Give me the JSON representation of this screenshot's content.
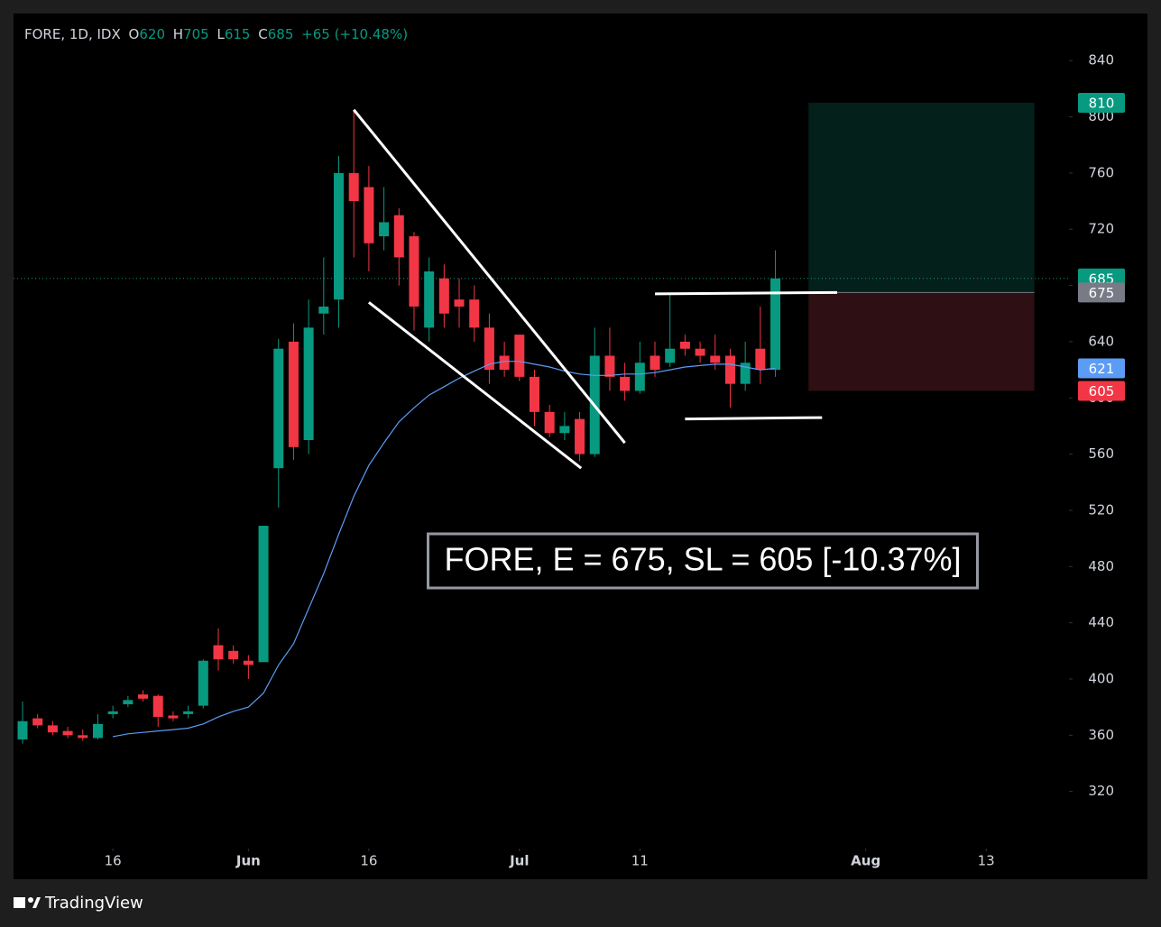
{
  "header": {
    "symbol": "FORE, 1D, IDX",
    "o_label": "O",
    "open": 620,
    "h_label": "H",
    "high": 705,
    "l_label": "L",
    "low": 615,
    "c_label": "C",
    "close": 685,
    "change": "+65 (+10.48%)"
  },
  "chart_data": {
    "type": "candlestick",
    "open": [
      357,
      372,
      367,
      363,
      360,
      358,
      375,
      382,
      389,
      388,
      374,
      375,
      381,
      424,
      420,
      413,
      412,
      550,
      640,
      570,
      660,
      670,
      760,
      750,
      715,
      730,
      715,
      650,
      685,
      670,
      670,
      650,
      630,
      645,
      615,
      590,
      575,
      585,
      560,
      630,
      615,
      605,
      630,
      625,
      640,
      635,
      630,
      630,
      610,
      635,
      620
    ],
    "high": [
      384,
      375,
      370,
      366,
      364,
      375,
      381,
      388,
      392,
      389,
      377,
      381,
      414,
      436,
      424,
      417,
      509,
      642,
      653,
      670,
      700,
      772,
      805,
      765,
      750,
      735,
      718,
      700,
      695,
      685,
      680,
      660,
      640,
      645,
      620,
      595,
      590,
      590,
      650,
      650,
      625,
      640,
      640,
      675,
      645,
      640,
      645,
      635,
      640,
      665,
      705
    ],
    "low": [
      354,
      365,
      360,
      358,
      356,
      357,
      372,
      380,
      384,
      366,
      370,
      372,
      379,
      406,
      411,
      400,
      412,
      522,
      556,
      560,
      645,
      650,
      700,
      690,
      705,
      680,
      648,
      640,
      650,
      650,
      640,
      610,
      615,
      612,
      580,
      572,
      570,
      555,
      558,
      605,
      598,
      603,
      615,
      622,
      630,
      625,
      620,
      593,
      605,
      610,
      615
    ],
    "close": [
      370,
      367,
      362,
      360,
      358,
      368,
      377,
      385,
      386,
      373,
      372,
      377,
      413,
      414,
      414,
      410,
      509,
      635,
      565,
      650,
      665,
      760,
      740,
      710,
      725,
      700,
      665,
      690,
      660,
      665,
      650,
      620,
      620,
      615,
      590,
      575,
      580,
      560,
      630,
      615,
      605,
      625,
      620,
      635,
      635,
      630,
      625,
      610,
      625,
      620,
      685
    ],
    "up_color": "#089981",
    "down_color": "#f23645",
    "series": [
      {
        "color": "#5b9cf6",
        "values": [
          null,
          null,
          null,
          null,
          null,
          null,
          359,
          361,
          362,
          363,
          364,
          365,
          368,
          373,
          377,
          380,
          390,
          410,
          425,
          450,
          475,
          503,
          530,
          552,
          568,
          583,
          593,
          602,
          608,
          614,
          619,
          624,
          626,
          626,
          624,
          622,
          619,
          617,
          616,
          616,
          617,
          617,
          618,
          620,
          622,
          623,
          624,
          624,
          622,
          620,
          621
        ]
      }
    ],
    "xlim": [
      -0.6,
      69.5
    ],
    "ylim": [
      280,
      869
    ],
    "xticks": [
      {
        "value": 6,
        "label": "16"
      },
      {
        "value": 15,
        "label": "Jun"
      },
      {
        "value": 23,
        "label": "16"
      },
      {
        "value": 33,
        "label": "Jul"
      },
      {
        "value": 41,
        "label": "11"
      },
      {
        "value": 56,
        "label": "Aug"
      },
      {
        "value": 64,
        "label": "13"
      }
    ],
    "yticks": [
      320,
      360,
      400,
      440,
      480,
      520,
      560,
      600,
      640,
      680,
      720,
      760,
      800,
      840
    ],
    "last_price": 685,
    "price_labels": [
      {
        "value": 810,
        "color": "#089981"
      },
      {
        "value": 685,
        "color": "#089981"
      },
      {
        "value": 675,
        "color": "#787b86"
      },
      {
        "value": 621,
        "color": "#5b9cf6"
      },
      {
        "value": 605,
        "color": "#f23645"
      }
    ],
    "position": {
      "x": [
        52.2,
        67.2
      ],
      "target": 810,
      "entry": 675,
      "stop": 605
    },
    "trendlines": [
      {
        "x": [
          22.0,
          40.0
        ],
        "y": [
          805,
          568
        ]
      },
      {
        "x": [
          23.0,
          37.1
        ],
        "y": [
          668,
          550
        ]
      },
      {
        "x": [
          42.0,
          54.1
        ],
        "y": [
          674,
          675
        ]
      },
      {
        "x": [
          44.0,
          53.1
        ],
        "y": [
          585,
          586
        ]
      }
    ],
    "annotation": "FORE, E = 675, SL = 605 [-10.37%]"
  },
  "footer": {
    "brand": "TradingView"
  }
}
